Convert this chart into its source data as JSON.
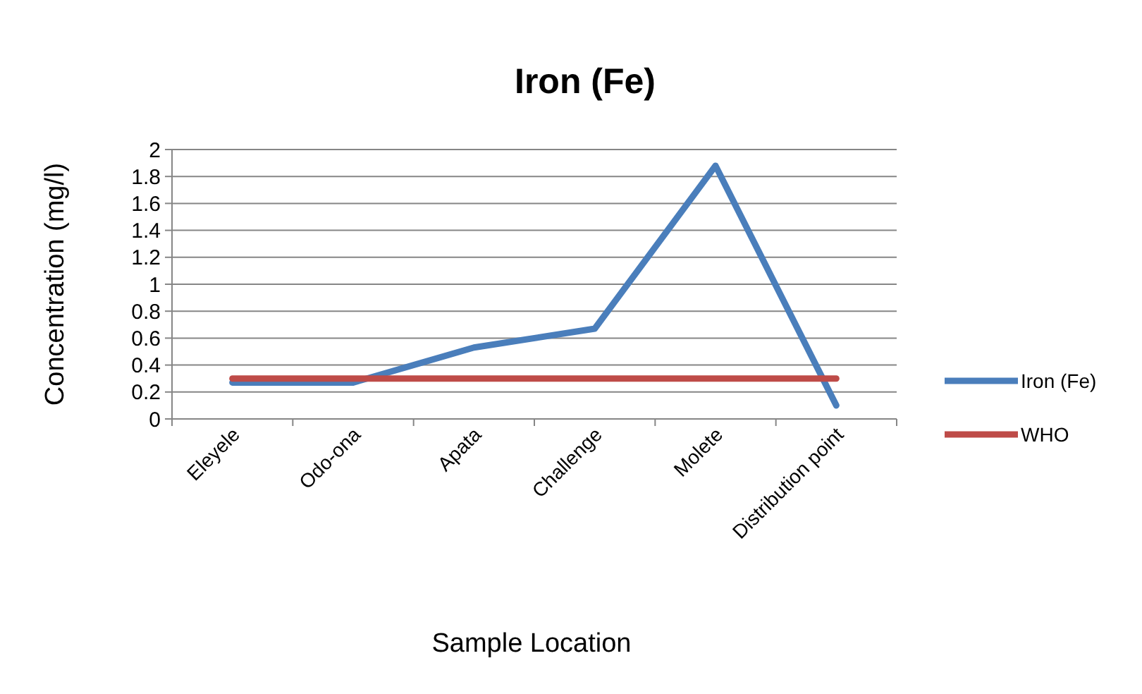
{
  "chart_data": {
    "type": "line",
    "title": "Iron (Fe)",
    "xlabel": "Sample Location",
    "ylabel": "Concentration (mg/l)",
    "categories": [
      "Eleyele",
      "Odo-ona",
      "Apata",
      "Challenge",
      "Molete",
      "Distribution point"
    ],
    "series": [
      {
        "name": "Iron (Fe)",
        "color": "#4a7ebb",
        "values": [
          0.27,
          0.27,
          0.53,
          0.67,
          1.88,
          0.1
        ]
      },
      {
        "name": "WHO",
        "color": "#be4b48",
        "values": [
          0.3,
          0.3,
          0.3,
          0.3,
          0.3,
          0.3
        ]
      }
    ],
    "ylim": [
      0,
      2
    ],
    "yticks": [
      0,
      0.2,
      0.4,
      0.6,
      0.8,
      1,
      1.2,
      1.4,
      1.6,
      1.8,
      2
    ],
    "grid": "y",
    "legend": "right",
    "marker": "none",
    "line_style": "solid"
  }
}
